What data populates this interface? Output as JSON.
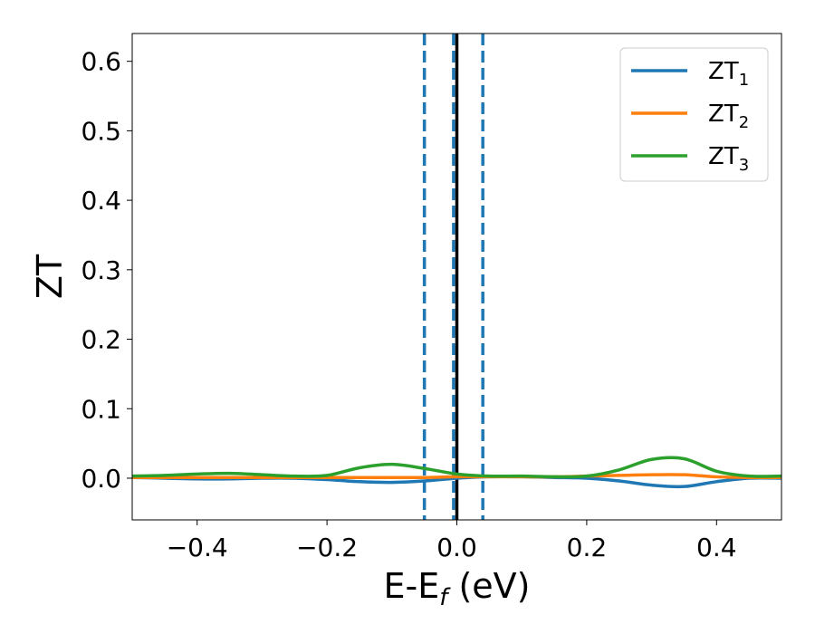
{
  "chart_data": {
    "type": "line",
    "title": "",
    "xlabel": "E-E_f (eV)",
    "ylabel": "ZT",
    "xlim": [
      -0.5,
      0.5
    ],
    "ylim": [
      -0.06,
      0.64
    ],
    "grid": false,
    "legend_position": "top-right",
    "x_ticks": [
      -0.4,
      -0.2,
      0.0,
      0.2,
      0.4
    ],
    "x_tick_labels": [
      "−0.4",
      "−0.2",
      "0.0",
      "0.2",
      "0.4"
    ],
    "y_ticks": [
      0.0,
      0.1,
      0.2,
      0.3,
      0.4,
      0.5,
      0.6
    ],
    "y_tick_labels": [
      "0.0",
      "0.1",
      "0.2",
      "0.3",
      "0.4",
      "0.5",
      "0.6"
    ],
    "vertical_lines": [
      {
        "x": -0.05,
        "style": "dashed",
        "color": "#1f77b4"
      },
      {
        "x": -0.005,
        "style": "dashed",
        "color": "#1f77b4"
      },
      {
        "x": 0.0,
        "style": "solid",
        "color": "#000000"
      },
      {
        "x": 0.04,
        "style": "dashed",
        "color": "#1f77b4"
      }
    ],
    "series": [
      {
        "name": "ZT_1",
        "label_base": "ZT",
        "label_sub": "1",
        "color": "#1f77b4",
        "x": [
          -0.5,
          -0.45,
          -0.4,
          -0.35,
          -0.3,
          -0.25,
          -0.2,
          -0.15,
          -0.1,
          -0.05,
          0.0,
          0.05,
          0.1,
          0.15,
          0.2,
          0.25,
          0.3,
          0.35,
          0.4,
          0.45,
          0.5
        ],
        "y": [
          0.001,
          0.0,
          -0.001,
          -0.001,
          0.0,
          0.0,
          -0.002,
          -0.005,
          -0.006,
          -0.004,
          0.0,
          0.002,
          0.002,
          0.001,
          0.0,
          -0.004,
          -0.01,
          -0.012,
          -0.005,
          0.0,
          0.0
        ]
      },
      {
        "name": "ZT_2",
        "label_base": "ZT",
        "label_sub": "2",
        "color": "#ff7f0e",
        "x": [
          -0.5,
          -0.45,
          -0.4,
          -0.35,
          -0.3,
          -0.25,
          -0.2,
          -0.15,
          -0.1,
          -0.05,
          0.0,
          0.05,
          0.1,
          0.15,
          0.2,
          0.25,
          0.3,
          0.35,
          0.4,
          0.45,
          0.5
        ],
        "y": [
          0.001,
          0.001,
          0.001,
          0.001,
          0.001,
          0.001,
          0.001,
          0.001,
          0.001,
          0.001,
          0.002,
          0.002,
          0.002,
          0.002,
          0.003,
          0.004,
          0.005,
          0.005,
          0.002,
          0.001,
          0.001
        ]
      },
      {
        "name": "ZT_3",
        "label_base": "ZT",
        "label_sub": "3",
        "color": "#2ca02c",
        "x": [
          -0.5,
          -0.45,
          -0.4,
          -0.35,
          -0.3,
          -0.25,
          -0.2,
          -0.15,
          -0.1,
          -0.05,
          0.0,
          0.05,
          0.1,
          0.15,
          0.2,
          0.25,
          0.3,
          0.35,
          0.4,
          0.45,
          0.5
        ],
        "y": [
          0.003,
          0.004,
          0.006,
          0.007,
          0.005,
          0.003,
          0.004,
          0.015,
          0.02,
          0.014,
          0.006,
          0.003,
          0.003,
          0.002,
          0.003,
          0.012,
          0.027,
          0.028,
          0.01,
          0.003,
          0.003
        ]
      }
    ]
  }
}
